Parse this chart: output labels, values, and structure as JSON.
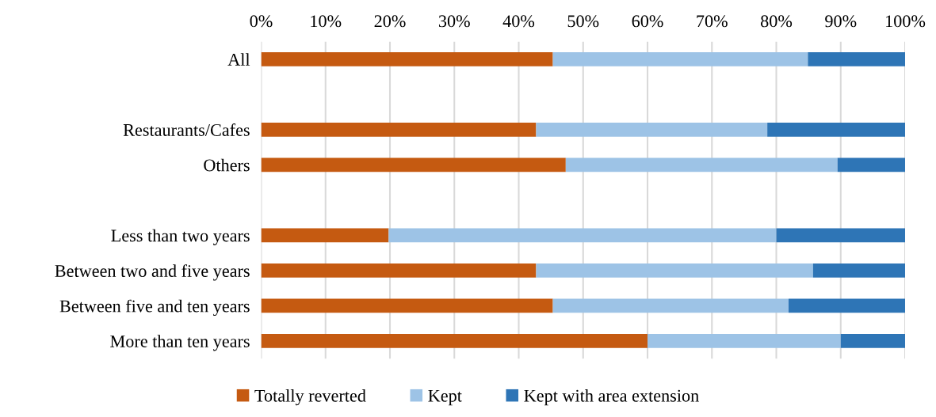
{
  "chart_data": {
    "type": "bar",
    "orientation": "horizontal",
    "stacked": true,
    "categories": [
      "All",
      null,
      "Restaurants/Cafes",
      "Others",
      null,
      "Less than two years",
      "Between two and five years",
      "Between five and ten years",
      "More than ten years"
    ],
    "series": [
      {
        "name": "Totally reverted",
        "color": "#c55a11",
        "values": [
          45.3,
          null,
          42.7,
          47.3,
          null,
          19.8,
          42.7,
          45.3,
          60.0
        ]
      },
      {
        "name": "Kept",
        "color": "#9dc3e6",
        "values": [
          39.6,
          null,
          35.9,
          42.2,
          null,
          60.2,
          43.0,
          36.6,
          30.0
        ]
      },
      {
        "name": "Kept with area extension",
        "color": "#2e75b6",
        "values": [
          15.1,
          null,
          21.4,
          10.5,
          null,
          20.0,
          14.3,
          18.1,
          10.0
        ]
      }
    ],
    "xlim": [
      0,
      100
    ],
    "xticks": [
      {
        "value": 0,
        "label": "0%"
      },
      {
        "value": 10,
        "label": "10%"
      },
      {
        "value": 20,
        "label": "20%"
      },
      {
        "value": 30,
        "label": "30%"
      },
      {
        "value": 40,
        "label": "40%"
      },
      {
        "value": 50,
        "label": "50%"
      },
      {
        "value": 60,
        "label": "60%"
      },
      {
        "value": 70,
        "label": "70%"
      },
      {
        "value": 80,
        "label": "80%"
      },
      {
        "value": 90,
        "label": "90%"
      },
      {
        "value": 100,
        "label": "100%"
      }
    ],
    "grid": "x",
    "legend": "bottom"
  }
}
